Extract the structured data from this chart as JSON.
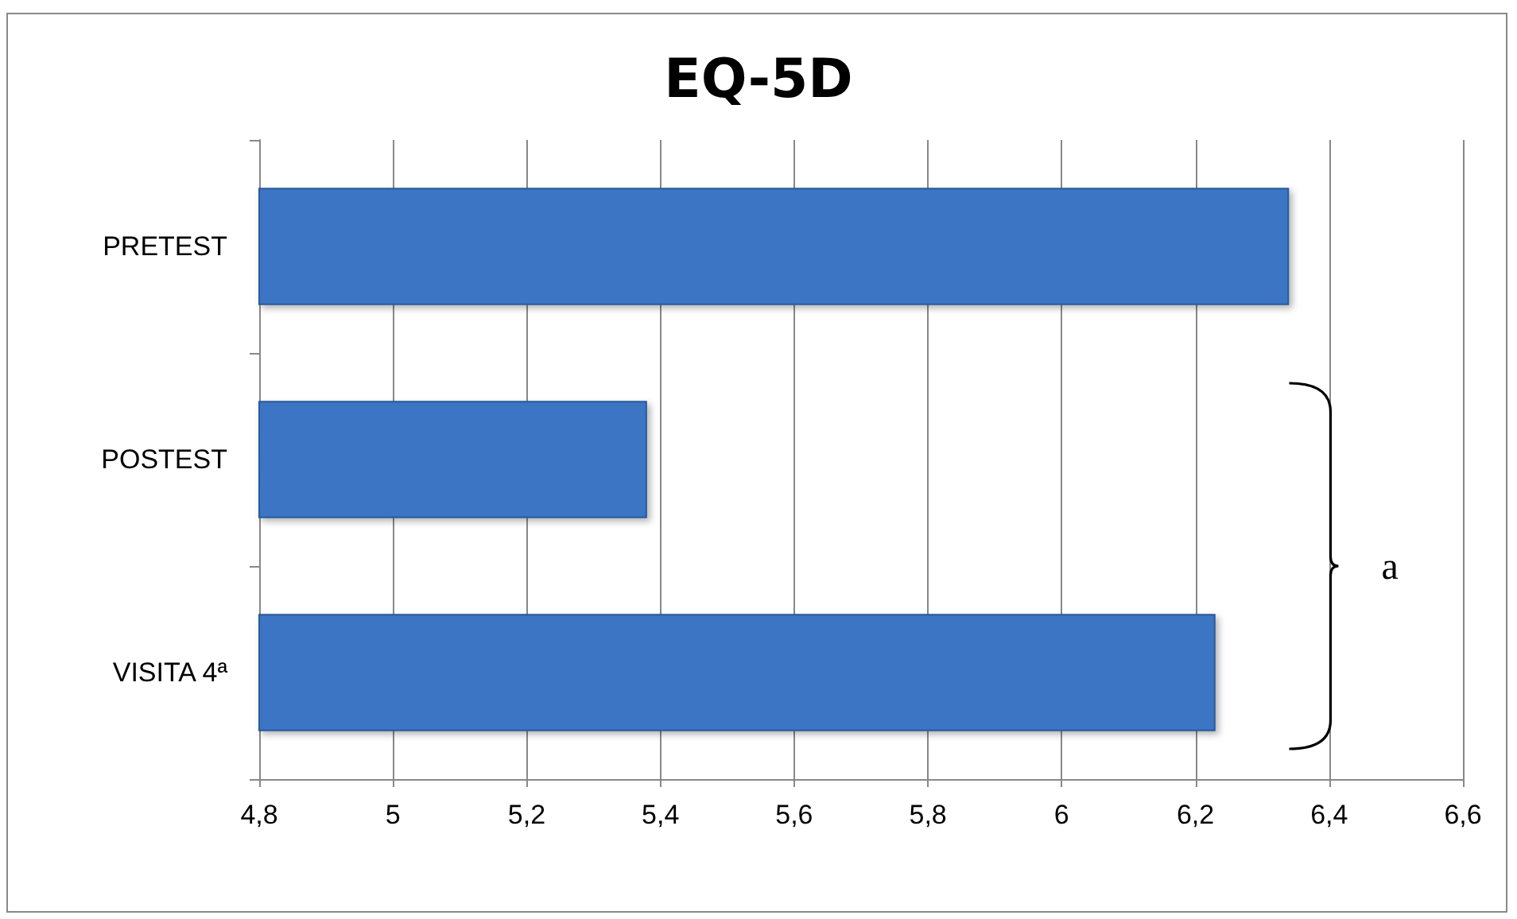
{
  "chart_data": {
    "type": "bar",
    "orientation": "horizontal",
    "title": "EQ-5D",
    "categories": [
      "PRETEST",
      "POSTEST",
      "VISITA 4ª"
    ],
    "values": [
      6.34,
      5.38,
      6.23
    ],
    "color": "#3a75c4",
    "xlim": [
      4.8,
      6.6
    ],
    "xticks": [
      {
        "value": 4.8,
        "label": "4,8"
      },
      {
        "value": 5,
        "label": "5"
      },
      {
        "value": 5.2,
        "label": "5,2"
      },
      {
        "value": 5.4,
        "label": "5,4"
      },
      {
        "value": 5.6,
        "label": "5,6"
      },
      {
        "value": 5.8,
        "label": "5,8"
      },
      {
        "value": 6,
        "label": "6"
      },
      {
        "value": 6.2,
        "label": "6,2"
      },
      {
        "value": 6.4,
        "label": "6,4"
      },
      {
        "value": 6.6,
        "label": "6,6"
      }
    ],
    "grid": "x",
    "annotations": [
      "a"
    ]
  }
}
